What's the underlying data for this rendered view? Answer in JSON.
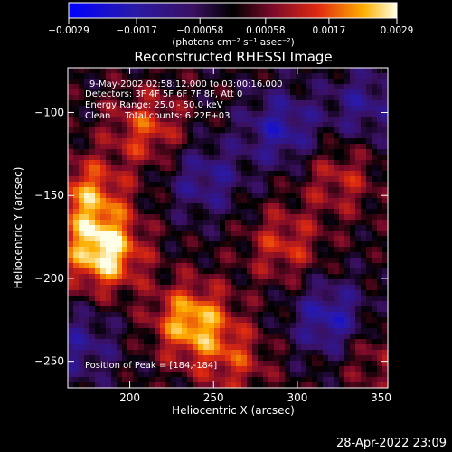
{
  "chart_data": {
    "type": "heatmap",
    "title": "Reconstructed RHESSI Image",
    "xlabel": "Heliocentric X (arcsec)",
    "ylabel": "Heliocentric Y (arcsec)",
    "xlim": [
      163,
      354
    ],
    "ylim": [
      -266,
      -73
    ],
    "x_ticks": [
      200,
      250,
      300,
      350
    ],
    "y_ticks": [
      -250,
      -200,
      -150,
      -100
    ],
    "x_tick_labels": [
      "200",
      "250",
      "300",
      "350"
    ],
    "y_tick_labels": [
      "−250",
      "−200",
      "−150",
      "−100"
    ],
    "colorbar": {
      "range": [
        -0.0029,
        0.0029
      ],
      "tick_values": [
        -0.0029,
        -0.0017,
        -0.00058,
        0.00058,
        0.0017,
        0.0029
      ],
      "tick_labels": [
        "−0.0029",
        "−0.0017",
        "−0.00058",
        "0.00058",
        "0.0017",
        "0.0029"
      ],
      "unit_label": "(photons cm⁻² s⁻¹ asec⁻²)"
    },
    "annotations": [
      "9-May-2002 02:58:12.000 to 03:00:16.000",
      "Detectors: 3F 4F 5F 6F 7F 8F, Att 0",
      "Energy Range: 25.0 - 50.0 keV",
      "Clean     Total counts: 6.22E+03"
    ],
    "peak_label": "Position of Peak = [184,-184]",
    "peak": {
      "x": 184,
      "y": -184
    },
    "sources": [
      {
        "x": 184,
        "y": -184,
        "amplitude": 0.0029
      },
      {
        "x": 237,
        "y": -226,
        "amplitude": 0.0024
      },
      {
        "x": 175,
        "y": -150,
        "amplitude": 0.0019
      },
      {
        "x": 210,
        "y": -110,
        "amplitude": 0.0015
      },
      {
        "x": 292,
        "y": -180,
        "amplitude": 0.0013
      },
      {
        "x": 325,
        "y": -140,
        "amplitude": 0.0011
      },
      {
        "x": 262,
        "y": -250,
        "amplitude": 0.0012
      },
      {
        "x": 345,
        "y": -245,
        "amplitude": 0.0009
      },
      {
        "x": 320,
        "y": -225,
        "amplitude": -0.0018
      },
      {
        "x": 290,
        "y": -110,
        "amplitude": -0.0016
      },
      {
        "x": 245,
        "y": -140,
        "amplitude": -0.0013
      },
      {
        "x": 170,
        "y": -240,
        "amplitude": -0.0012
      },
      {
        "x": 340,
        "y": -95,
        "amplitude": -0.0012
      }
    ]
  },
  "footer_timestamp": "28-Apr-2022 23:09"
}
